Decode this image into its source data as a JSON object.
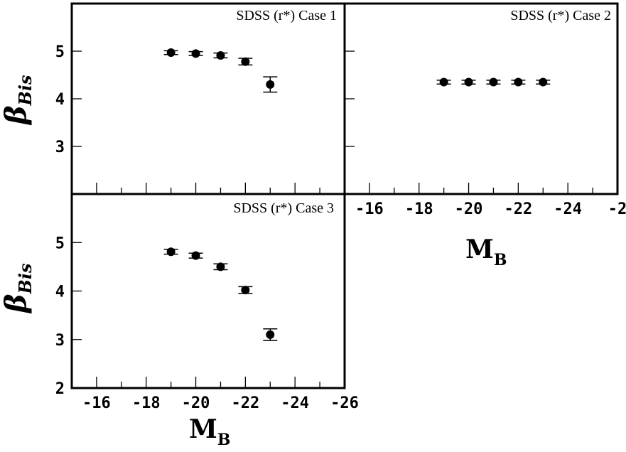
{
  "chart_data": [
    {
      "type": "scatter",
      "title": "SDSS (r*)  Case 1",
      "ylabel": {
        "symbol": "β",
        "subscript": "Bis"
      },
      "xlim": [
        -15,
        -26
      ],
      "ylim": [
        2,
        6
      ],
      "yticks": [
        "3",
        "4",
        "5"
      ],
      "x": [
        -19,
        -20,
        -21,
        -22,
        -23
      ],
      "y": [
        4.97,
        4.95,
        4.91,
        4.78,
        4.3
      ],
      "yerr": [
        0.04,
        0.04,
        0.05,
        0.07,
        0.16
      ]
    },
    {
      "type": "scatter",
      "title": "SDSS (r*)  Case 2",
      "xlabel": {
        "symbol": "M",
        "subscript": "B"
      },
      "xlim": [
        -15,
        -26
      ],
      "ylim": [
        2,
        6
      ],
      "xticks": [
        "-16",
        "-18",
        "-20",
        "-22",
        "-24",
        "-2"
      ],
      "x": [
        -19,
        -20,
        -21,
        -22,
        -23
      ],
      "y": [
        4.35,
        4.35,
        4.35,
        4.35,
        4.35
      ],
      "yerr": [
        0.04,
        0.04,
        0.04,
        0.04,
        0.04
      ]
    },
    {
      "type": "scatter",
      "title": "SDSS (r*)  Case 3",
      "ylabel": {
        "symbol": "β",
        "subscript": "Bis"
      },
      "xlabel": {
        "symbol": "M",
        "subscript": "B"
      },
      "xlim": [
        -15,
        -26
      ],
      "ylim": [
        2,
        6
      ],
      "yticks": [
        "2",
        "3",
        "4",
        "5"
      ],
      "xticks": [
        "-16",
        "-18",
        "-20",
        "-22",
        "-24",
        "-26"
      ],
      "x": [
        -19,
        -20,
        -21,
        -22,
        -23
      ],
      "y": [
        4.81,
        4.73,
        4.5,
        4.02,
        3.1
      ],
      "yerr": [
        0.05,
        0.05,
        0.06,
        0.07,
        0.12
      ]
    }
  ]
}
